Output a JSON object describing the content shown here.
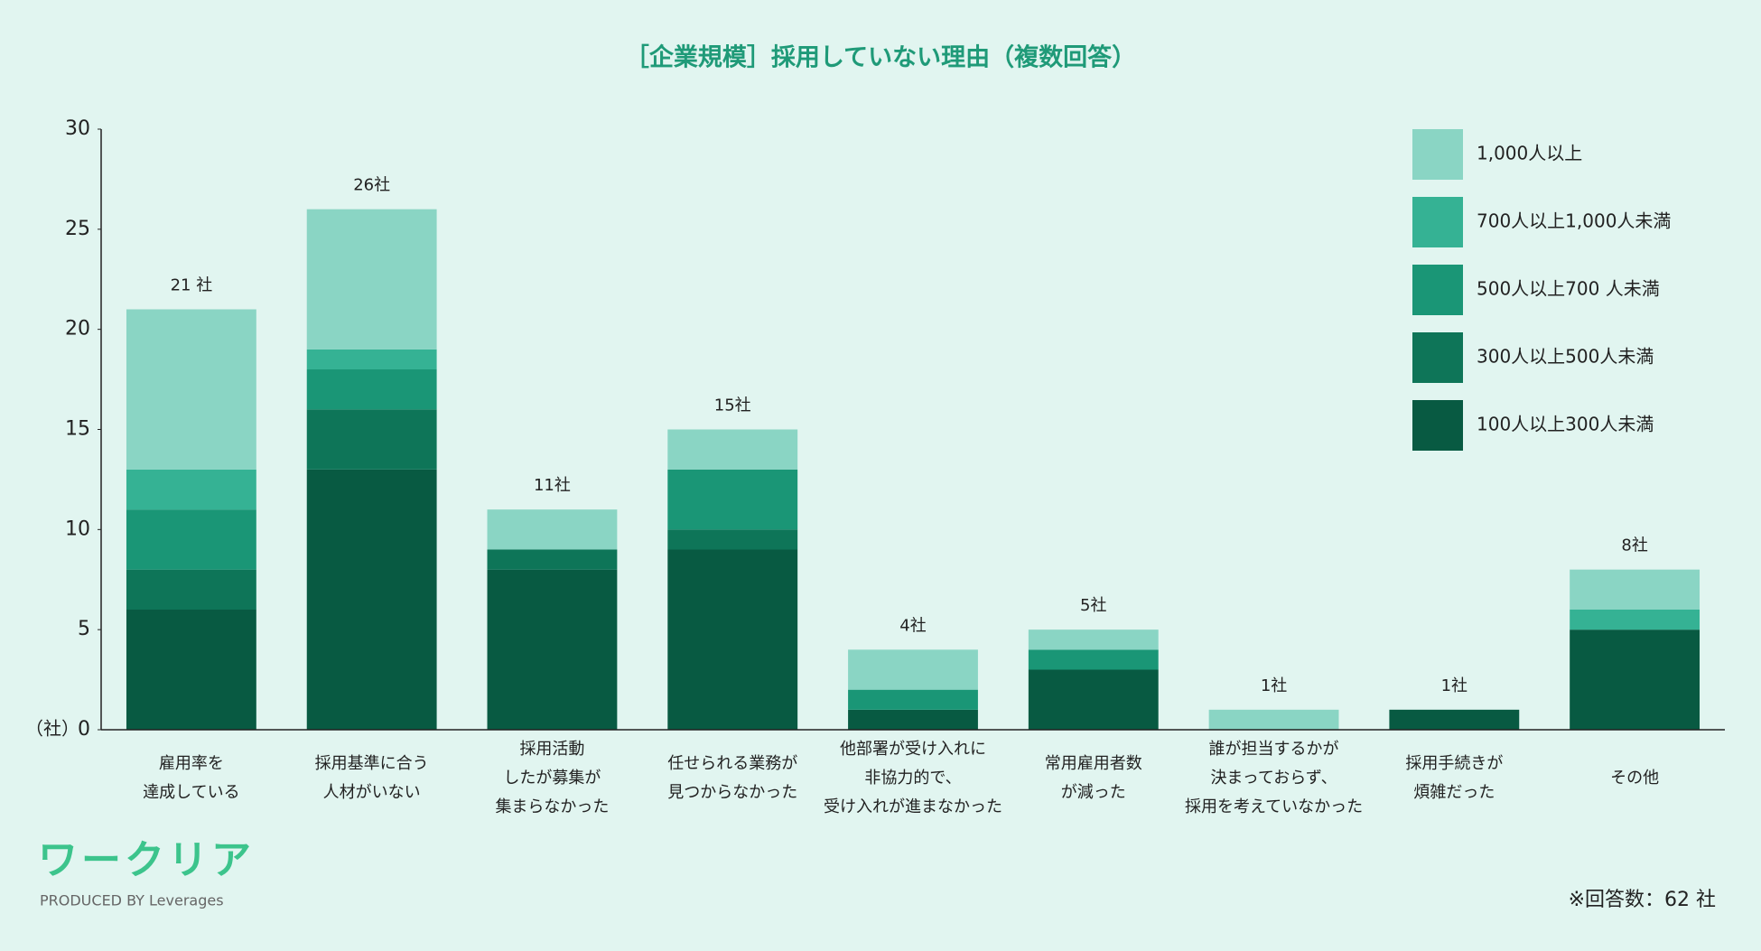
{
  "chart_data": {
    "type": "stacked_bar",
    "title": "［企業規模］採用していない理由（複数回答）",
    "y_axis_label": "（社）",
    "categories": [
      [
        "雇用率を",
        "達成している"
      ],
      [
        "採用基準に合う",
        "人材がいない"
      ],
      [
        "採用活動",
        "したが募集が",
        "集まらなかった"
      ],
      [
        "任せられる業務が",
        "見つからなかった"
      ],
      [
        "他部署が受け入れに",
        "非協力的で、",
        "受け入れが進まなかった"
      ],
      [
        "常用雇用者数",
        "が減った"
      ],
      [
        "誰が担当するかが",
        "決まっておらず、",
        "採用を考えていなかった"
      ],
      [
        "採用手続きが",
        "煩雑だった"
      ],
      [
        "その他"
      ]
    ],
    "series": [
      {
        "name": "100人以上300人未満",
        "color": "#085a42",
        "values": [
          6,
          13,
          8,
          9,
          1,
          3,
          0,
          1,
          5
        ]
      },
      {
        "name": "300人以上500人未満",
        "color": "#0e7558",
        "values": [
          2,
          3,
          1,
          1,
          0,
          0,
          0,
          0,
          0
        ]
      },
      {
        "name": "500人以上700 人未満",
        "color": "#1a9676",
        "values": [
          3,
          2,
          0,
          3,
          1,
          1,
          0,
          0,
          0
        ]
      },
      {
        "name": "700人以上1,000人未満",
        "color": "#35b294",
        "values": [
          2,
          1,
          0,
          0,
          0,
          0,
          0,
          0,
          1
        ]
      },
      {
        "name": "1,000人以上",
        "color": "#8ad5c4",
        "values": [
          8,
          7,
          2,
          2,
          2,
          1,
          1,
          0,
          2
        ]
      }
    ],
    "totals": [
      21,
      26,
      11,
      15,
      4,
      5,
      1,
      1,
      8
    ],
    "total_labels": [
      "21 社",
      "26社",
      "11社",
      "15社",
      "4社",
      "5社",
      "1社",
      "1社",
      "8社"
    ],
    "ylim": [
      0,
      30
    ],
    "yticks": [
      0,
      5,
      10,
      15,
      20,
      25,
      30
    ],
    "note": "※回答数：62 社",
    "logo": {
      "name": "ワークリア",
      "tagline": "PRODUCED BY Leverages"
    }
  }
}
